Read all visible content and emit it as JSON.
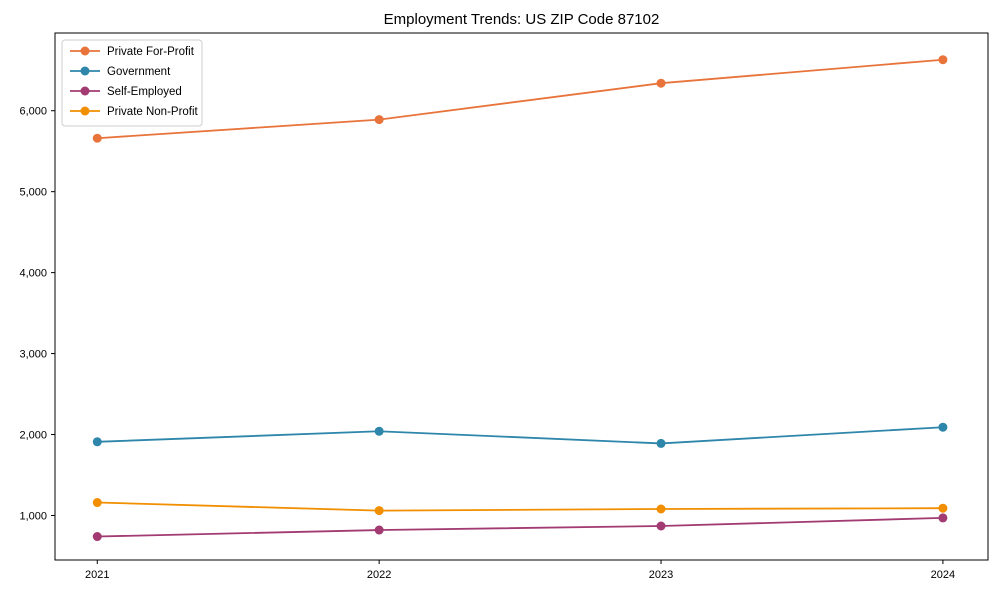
{
  "chart_data": {
    "type": "line",
    "title": "Employment Trends: US ZIP Code 87102",
    "xlabel": "",
    "ylabel": "",
    "x": [
      2021,
      2022,
      2023,
      2024
    ],
    "series": [
      {
        "name": "Private For-Profit",
        "color": "#E8743B",
        "values": [
          5660,
          5890,
          6340,
          6630
        ]
      },
      {
        "name": "Government",
        "color": "#2E86AB",
        "values": [
          1910,
          2040,
          1890,
          2090
        ]
      },
      {
        "name": "Self-Employed",
        "color": "#A23B72",
        "values": [
          740,
          820,
          870,
          970
        ]
      },
      {
        "name": "Private Non-Profit",
        "color": "#F18F01",
        "values": [
          1160,
          1060,
          1080,
          1090
        ]
      }
    ],
    "xticks": [
      2021,
      2022,
      2023,
      2024
    ],
    "yticks": [
      1000,
      2000,
      3000,
      4000,
      5000,
      6000
    ],
    "ytick_labels": [
      "1,000",
      "2,000",
      "3,000",
      "4,000",
      "5,000",
      "6,000"
    ],
    "xlim": [
      2020.85,
      2024.16
    ],
    "ylim": [
      450,
      6960
    ],
    "grid": false,
    "legend_position": "upper left",
    "marker": "circle",
    "axis_color": "#000000",
    "background_color": "#ffffff",
    "legend_border_color": "#cccccc"
  }
}
